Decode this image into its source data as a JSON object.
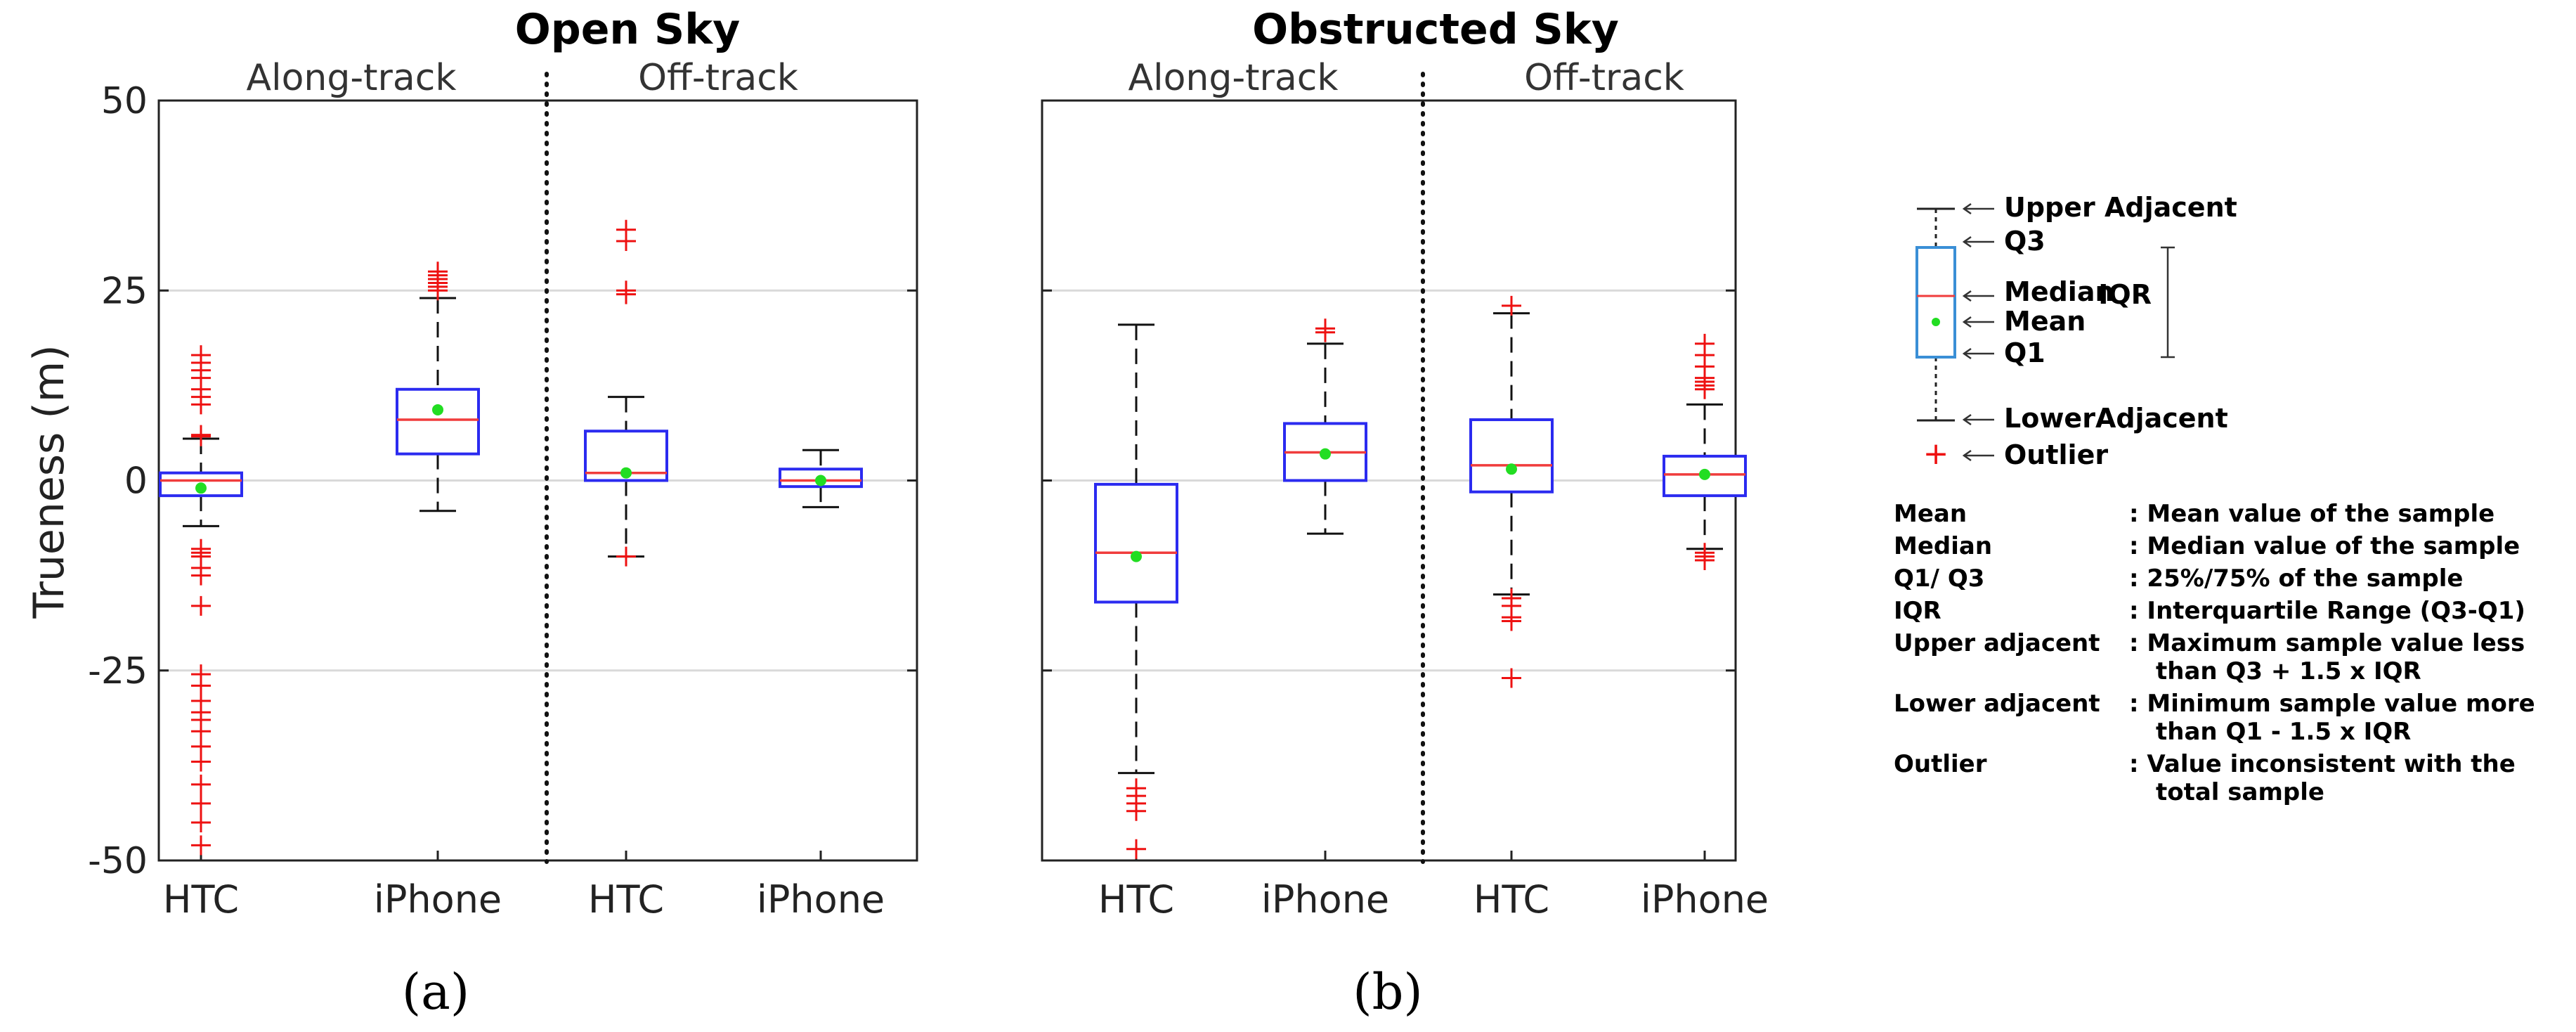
{
  "colors": {
    "box": "#2b2bf0",
    "median": "#f03c3c",
    "mean": "#22dd22",
    "outlier": "#ee1111",
    "whisker": "#111111",
    "grid": "#d9d9d9",
    "legend_box": "#3a8fd6"
  },
  "chart_data": [
    {
      "type": "box",
      "title": "Open Sky",
      "ylabel": "Trueness (m)",
      "ylim": [
        -50,
        50
      ],
      "yticks": [
        50,
        25,
        0,
        -25,
        -50
      ],
      "grid": "horizontal",
      "groups": [
        "Along-track",
        "Off-track"
      ],
      "categories": [
        "HTC",
        "iPhone",
        "HTC",
        "iPhone"
      ],
      "caption": "(a)",
      "boxes": [
        {
          "group": "Along-track",
          "device": "HTC",
          "lower_adjacent": -6,
          "q1": -2,
          "median": 0,
          "q3": 1,
          "upper_adjacent": 5.5,
          "mean": -1,
          "outliers": [
            16.5,
            15.5,
            14.5,
            13.5,
            12,
            11,
            10,
            6,
            5.8,
            -9,
            -9.5,
            -10,
            -11.5,
            -12.5,
            -16.5,
            -25.5,
            -27,
            -29,
            -30.5,
            -31.5,
            -33,
            -35,
            -37,
            -40,
            -42.5,
            -45,
            -48
          ]
        },
        {
          "group": "Along-track",
          "device": "iPhone",
          "lower_adjacent": -4,
          "q1": 3.5,
          "median": 8,
          "q3": 12,
          "upper_adjacent": 24,
          "mean": 9.3,
          "outliers": [
            27.5,
            27,
            26.5,
            26,
            25.5,
            25
          ]
        },
        {
          "group": "Off-track",
          "device": "HTC",
          "lower_adjacent": -10,
          "q1": 0,
          "median": 1,
          "q3": 6.5,
          "upper_adjacent": 11,
          "mean": 1,
          "outliers": [
            33,
            31.5,
            25,
            24.5,
            -10
          ]
        },
        {
          "group": "Off-track",
          "device": "iPhone",
          "lower_adjacent": -3.5,
          "q1": -0.8,
          "median": 0,
          "q3": 1.5,
          "upper_adjacent": 4,
          "mean": 0,
          "outliers": []
        }
      ]
    },
    {
      "type": "box",
      "title": "Obstructed Sky",
      "ylabel": "",
      "ylim": [
        -50,
        50
      ],
      "grid": "horizontal",
      "groups": [
        "Along-track",
        "Off-track"
      ],
      "categories": [
        "HTC",
        "iPhone",
        "HTC",
        "iPhone"
      ],
      "caption": "(b)",
      "boxes": [
        {
          "group": "Along-track",
          "device": "HTC",
          "lower_adjacent": -38.5,
          "q1": -16,
          "median": -9.5,
          "q3": -0.5,
          "upper_adjacent": 20.5,
          "mean": -10,
          "outliers": [
            -40.5,
            -41.5,
            -42.5,
            -43.5,
            -48.5
          ]
        },
        {
          "group": "Along-track",
          "device": "iPhone",
          "lower_adjacent": -7,
          "q1": 0,
          "median": 3.7,
          "q3": 7.5,
          "upper_adjacent": 18,
          "mean": 3.5,
          "outliers": [
            20,
            19.5
          ]
        },
        {
          "group": "Off-track",
          "device": "HTC",
          "lower_adjacent": -15,
          "q1": -1.5,
          "median": 2,
          "q3": 8,
          "upper_adjacent": 22,
          "mean": 1.5,
          "outliers": [
            23,
            -15.5,
            -16.5,
            -18,
            -18.5,
            -26
          ]
        },
        {
          "group": "Off-track",
          "device": "iPhone",
          "lower_adjacent": -9,
          "q1": -2,
          "median": 0.8,
          "q3": 3.2,
          "upper_adjacent": 10,
          "mean": 0.8,
          "outliers": [
            18,
            16.5,
            15,
            13.5,
            13,
            12.5,
            12,
            -9.5,
            -10,
            -10.5
          ]
        }
      ]
    }
  ],
  "legend": {
    "labels": {
      "upper_adjacent": "Upper Adjacent",
      "q3": "Q3",
      "median": "Median",
      "mean": "Mean",
      "q1": "Q1",
      "lower_adjacent": "LowerAdjacent",
      "outlier": "Outlier",
      "iqr": "IQR"
    },
    "definitions": [
      {
        "term": "Mean",
        "lines": [
          ": Mean value of the sample"
        ]
      },
      {
        "term": "Median",
        "lines": [
          ": Median value of the sample"
        ]
      },
      {
        "term": "Q1/ Q3",
        "lines": [
          ": 25%/75% of the sample"
        ]
      },
      {
        "term": "IQR",
        "lines": [
          ": Interquartile Range (Q3-Q1)"
        ]
      },
      {
        "term": "Upper adjacent",
        "lines": [
          ": Maximum sample value less",
          "than Q3 + 1.5 x IQR"
        ]
      },
      {
        "term": "Lower adjacent",
        "lines": [
          ": Minimum sample value more",
          "than Q1 - 1.5 x IQR"
        ]
      },
      {
        "term": "Outlier",
        "lines": [
          ": Value inconsistent with the",
          "total sample"
        ]
      }
    ]
  }
}
